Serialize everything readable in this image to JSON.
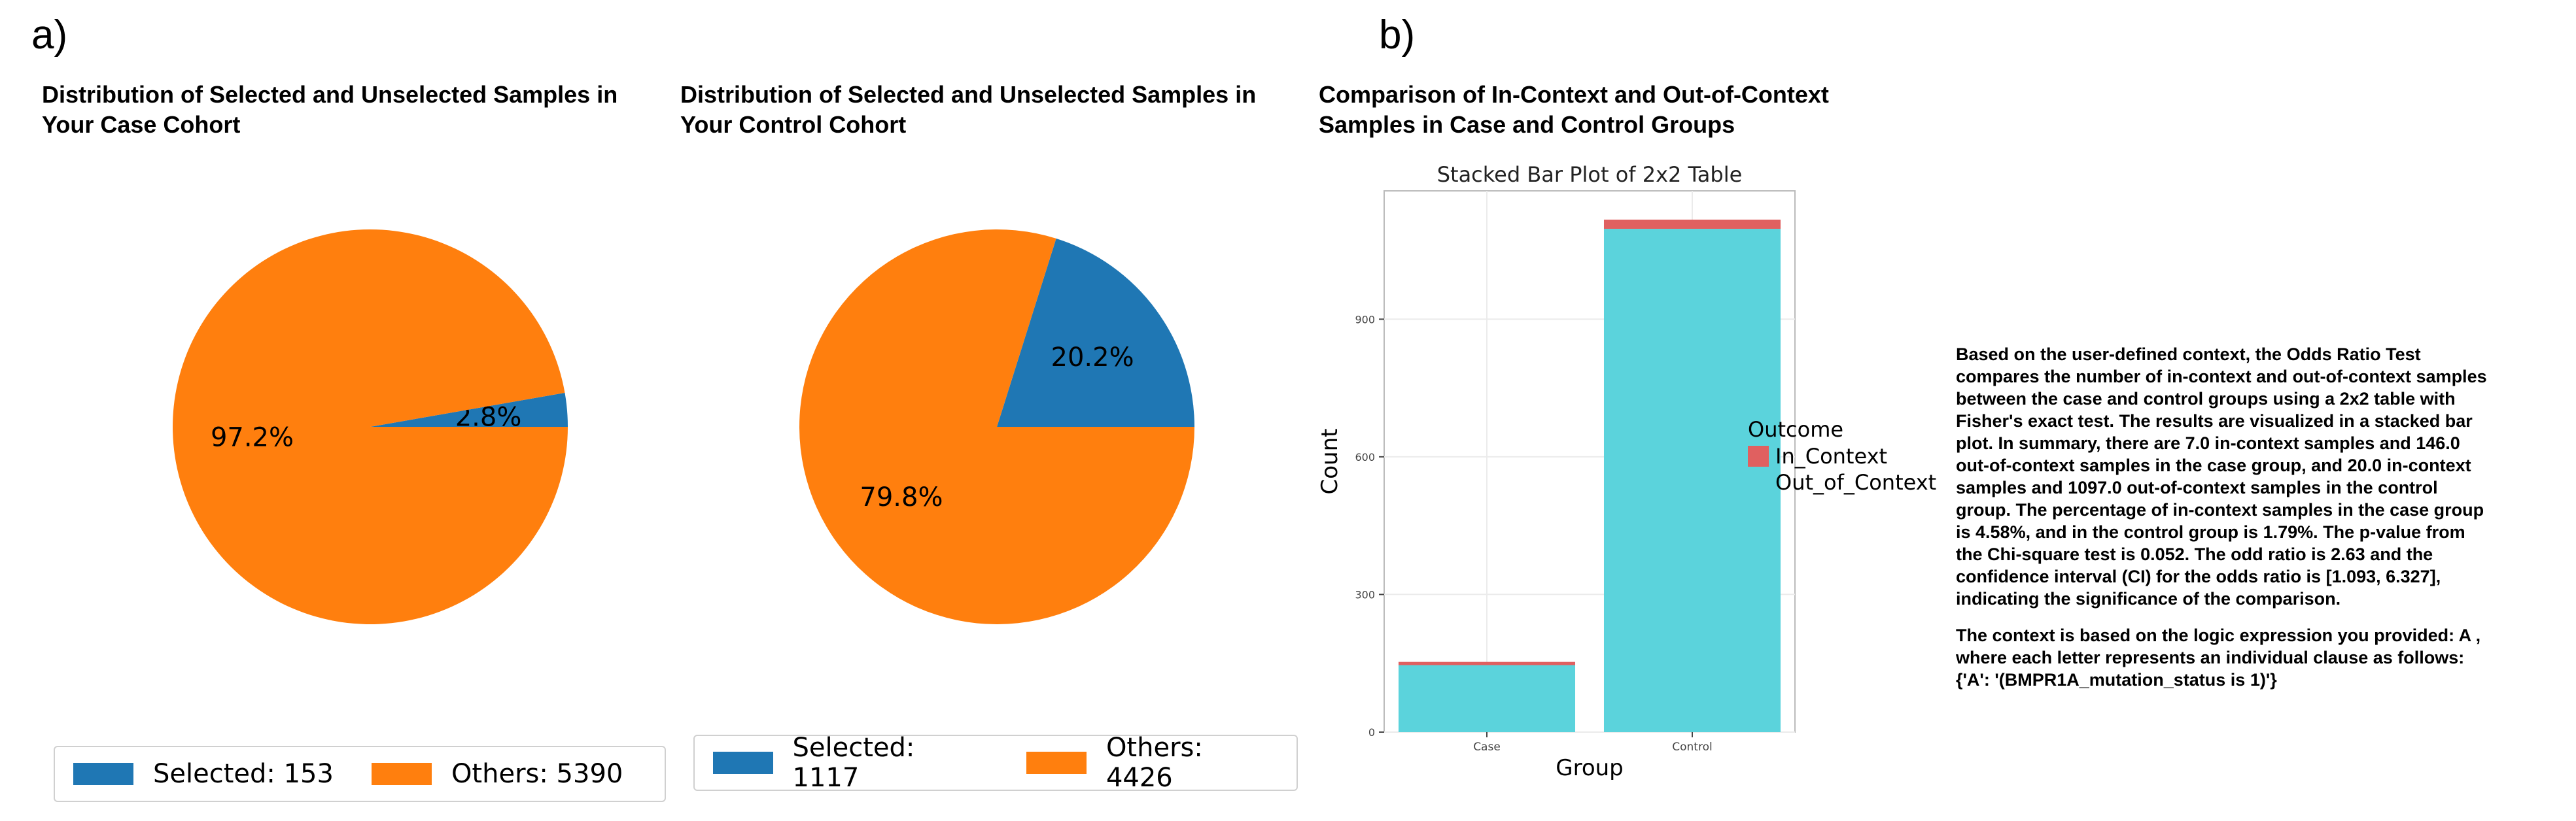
{
  "panel_a": {
    "label": "a)",
    "charts": [
      {
        "title_lines": [
          "Distribution of Selected and Unselected Samples in",
          "Your Case Cohort"
        ],
        "legend": [
          {
            "label": "Selected: 153",
            "color": "#1f77b4"
          },
          {
            "label": "Others: 5390",
            "color": "#ff7f0e"
          }
        ]
      },
      {
        "title_lines": [
          "Distribution of Selected and Unselected Samples in",
          "Your Control Cohort"
        ],
        "legend": [
          {
            "label": "Selected: 1117",
            "color": "#1f77b4"
          },
          {
            "label": "Others: 4426",
            "color": "#ff7f0e"
          }
        ]
      }
    ]
  },
  "panel_b": {
    "label": "b)",
    "title_lines": [
      "Comparison of In-Context and Out-of-Context",
      "Samples in Case and Control Groups"
    ]
  },
  "chart_data": [
    {
      "type": "pie",
      "labels": [
        "Selected",
        "Others"
      ],
      "values": [
        153,
        5390
      ],
      "percent_labels": [
        "2.8%",
        "97.2%"
      ],
      "colors": [
        "#1f77b4",
        "#ff7f0e"
      ]
    },
    {
      "type": "pie",
      "labels": [
        "Selected",
        "Others"
      ],
      "values": [
        1117,
        4426
      ],
      "percent_labels": [
        "20.2%",
        "79.8%"
      ],
      "colors": [
        "#1f77b4",
        "#ff7f0e"
      ]
    },
    {
      "type": "bar",
      "stacked": true,
      "title": "Stacked Bar Plot of 2x2 Table",
      "xlabel": "Group",
      "ylabel": "Count",
      "categories": [
        "Case",
        "Control"
      ],
      "ylim": [
        0,
        1117
      ],
      "yticks": [
        0,
        300,
        600,
        900
      ],
      "legend_title": "Outcome",
      "series": [
        {
          "name": "Out_of_Context",
          "values": [
            146,
            1097
          ],
          "color": "#5bd3dc"
        },
        {
          "name": "In_Context",
          "values": [
            7,
            20
          ],
          "color": "#e06060"
        }
      ],
      "legend_order": [
        "In_Context",
        "Out_of_Context"
      ],
      "grid": true
    }
  ],
  "summary": {
    "paragraph_lines": [
      "Based on the user-defined context, the Odds Ratio Test",
      "compares the number of in-context and out-of-context samples",
      "between the case and control groups using a 2x2 table with",
      "Fisher's exact test. The results are visualized in a stacked bar",
      "plot. In summary, there are 7.0 in-context samples and 146.0",
      "out-of-context samples in the case group, and 20.0 in-context",
      "samples and 1097.0 out-of-context samples in the control",
      "group. The percentage of in-context samples in the case group",
      "is 4.58%, and in the control group is 1.79%. The p-value from",
      "the Chi-square test is 0.052. The odd ratio is 2.63 and the",
      "confidence interval (CI) for the odds ratio is [1.093, 6.327],",
      "indicating the significance of the comparison."
    ],
    "context_lines": [
      "The context is based on the logic expression you provided: A ,",
      "where each letter represents an individual clause as follows:",
      "{'A': '(BMPR1A_mutation_status is 1)'}"
    ]
  }
}
